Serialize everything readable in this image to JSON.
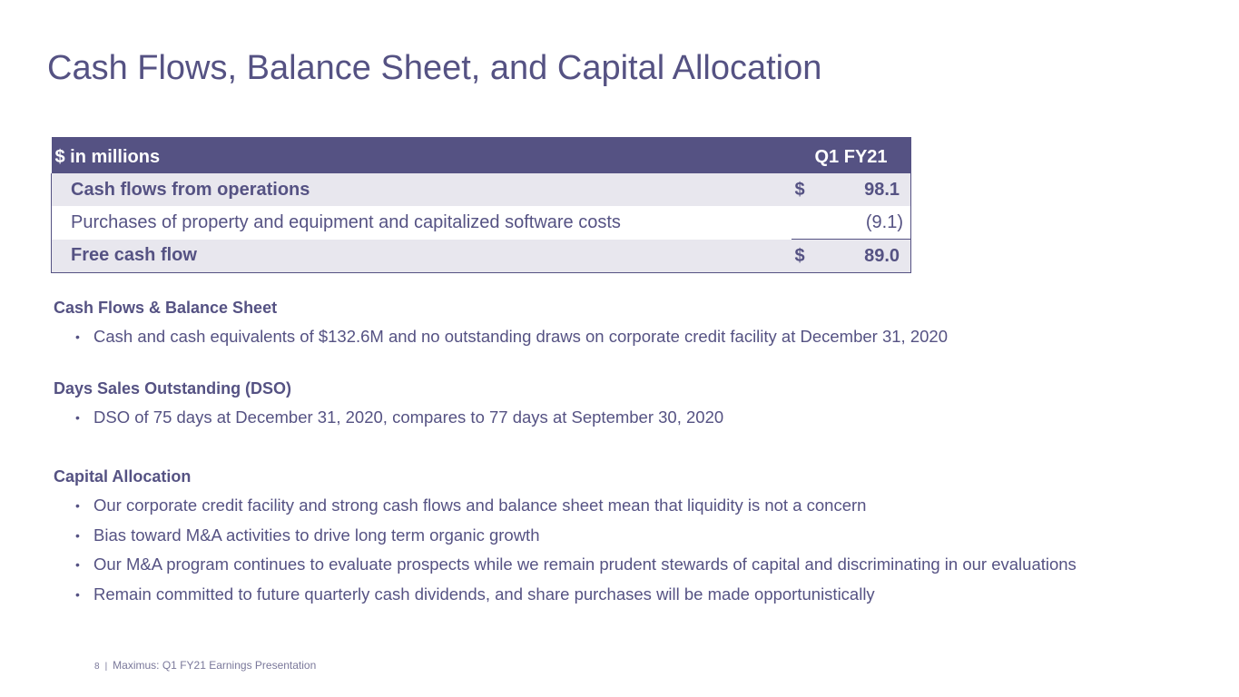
{
  "slide": {
    "title": "Cash Flows, Balance Sheet, and Capital Allocation"
  },
  "table": {
    "header_label": "$ in millions",
    "header_period": "Q1 FY21",
    "rows": [
      {
        "label": "Cash flows from operations",
        "currency": "$",
        "value": "98.1"
      },
      {
        "label": "Purchases of property and equipment and capitalized software costs",
        "currency": "",
        "value": "(9.1)"
      },
      {
        "label": "Free cash flow",
        "currency": "$",
        "value": "89.0"
      }
    ]
  },
  "sections": [
    {
      "heading": "Cash Flows & Balance Sheet",
      "bullets": [
        "Cash and cash equivalents of $132.6M and no outstanding draws on corporate credit facility at December 31, 2020"
      ]
    },
    {
      "heading": "Days Sales Outstanding (DSO)",
      "bullets": [
        "DSO of 75 days at December 31, 2020, compares to 77 days at September 30, 2020"
      ]
    },
    {
      "heading": "Capital Allocation",
      "bullets": [
        "Our corporate credit facility and strong cash flows and balance sheet mean that liquidity is not a concern",
        "Bias toward M&A activities to drive long term organic growth",
        "Our M&A program continues to evaluate prospects while we remain prudent stewards of capital and discriminating in our evaluations",
        "Remain committed to future quarterly cash dividends, and share purchases will be made opportunistically"
      ]
    }
  ],
  "bullet_glyph": "•",
  "footer": {
    "page_number": "8",
    "separator": "|",
    "text": "Maximus: Q1 FY21 Earnings Presentation"
  }
}
